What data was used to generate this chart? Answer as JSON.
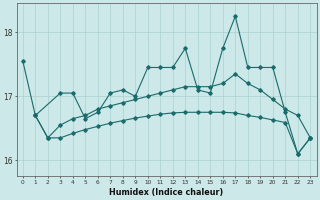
{
  "xlabel": "Humidex (Indice chaleur)",
  "bg_color": "#cce8e8",
  "line_color": "#1a6b6b",
  "grid_color": "#aad0d0",
  "xlim": [
    -0.5,
    23.5
  ],
  "ylim": [
    15.75,
    18.45
  ],
  "yticks": [
    16,
    17,
    18
  ],
  "xticks": [
    0,
    1,
    2,
    3,
    4,
    5,
    6,
    7,
    8,
    9,
    10,
    11,
    12,
    13,
    14,
    15,
    16,
    17,
    18,
    19,
    20,
    21,
    22,
    23
  ],
  "line1_x": [
    0,
    1,
    3,
    4,
    5,
    6,
    7,
    8,
    9,
    10,
    11,
    12,
    13,
    14,
    15,
    16,
    17,
    18,
    19,
    20,
    21,
    22,
    23
  ],
  "line1_y": [
    17.55,
    16.7,
    17.05,
    17.05,
    16.65,
    16.75,
    17.05,
    17.1,
    17.0,
    17.45,
    17.45,
    17.45,
    17.75,
    17.1,
    17.05,
    17.75,
    18.25,
    17.45,
    17.45,
    17.45,
    16.75,
    16.1,
    16.35
  ],
  "line2_x": [
    1,
    2,
    3,
    4,
    5,
    6,
    7,
    8,
    9,
    10,
    11,
    12,
    13,
    14,
    15,
    16,
    17,
    18,
    19,
    20,
    21,
    22,
    23
  ],
  "line2_y": [
    16.7,
    16.35,
    16.55,
    16.65,
    16.7,
    16.8,
    16.85,
    16.9,
    16.95,
    17.0,
    17.05,
    17.1,
    17.15,
    17.15,
    17.15,
    17.2,
    17.35,
    17.2,
    17.1,
    16.95,
    16.8,
    16.7,
    16.35
  ],
  "line3_x": [
    1,
    2,
    3,
    4,
    5,
    6,
    7,
    8,
    9,
    10,
    11,
    12,
    13,
    14,
    15,
    16,
    17,
    18,
    19,
    20,
    21,
    22,
    23
  ],
  "line3_y": [
    16.7,
    16.35,
    16.35,
    16.42,
    16.48,
    16.53,
    16.58,
    16.62,
    16.66,
    16.69,
    16.72,
    16.74,
    16.75,
    16.75,
    16.75,
    16.75,
    16.74,
    16.7,
    16.67,
    16.63,
    16.59,
    16.1,
    16.35
  ]
}
